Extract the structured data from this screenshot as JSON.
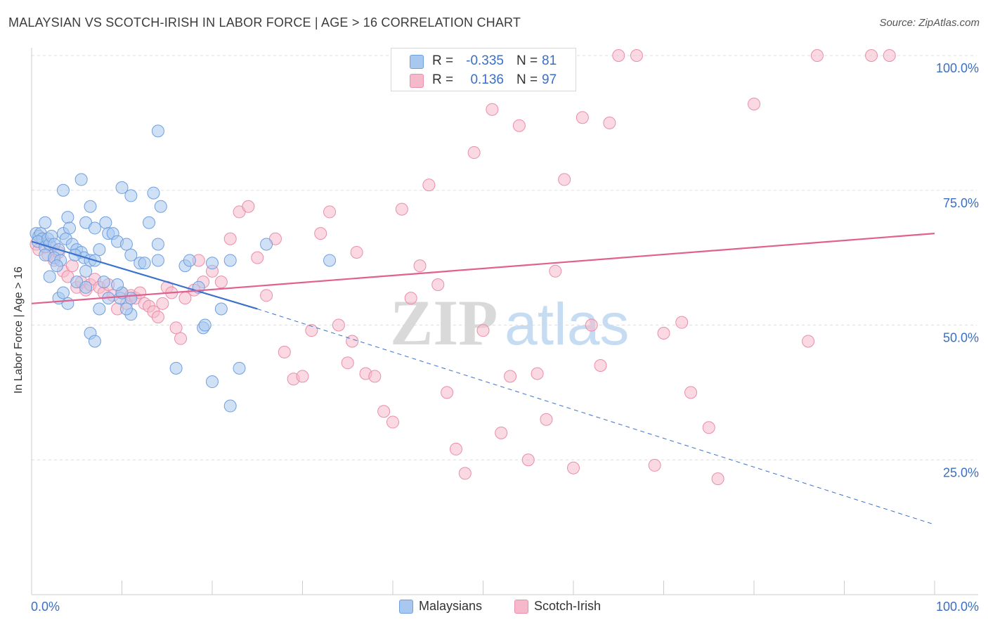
{
  "header": {
    "title": "MALAYSIAN VS SCOTCH-IRISH IN LABOR FORCE | AGE > 16 CORRELATION CHART",
    "source": "Source: ZipAtlas.com"
  },
  "watermark": "ZIPatlas",
  "legend_box": {
    "rows": [
      {
        "r_label": "R =",
        "r_value": "-0.335",
        "n_label": "N =",
        "n_value": "81"
      },
      {
        "r_label": "R =",
        "r_value": "0.136",
        "n_label": "N =",
        "n_value": "97"
      }
    ]
  },
  "colors": {
    "blue_fill": "#a9c8ef",
    "blue_stroke": "#6f9fe0",
    "blue_line": "#3a72cc",
    "pink_fill": "#f6b9cb",
    "pink_stroke": "#ea8eab",
    "pink_line": "#e0608e",
    "tick_label": "#3a6fc4",
    "grid": "#dddddd"
  },
  "chart_data": {
    "type": "scatter",
    "title": "MALAYSIAN VS SCOTCH-IRISH IN LABOR FORCE | AGE > 16 CORRELATION CHART",
    "xlabel": "",
    "ylabel": "In Labor Force | Age > 16",
    "xlim": [
      0,
      100
    ],
    "ylim": [
      0,
      105
    ],
    "x_tick_labels": [
      "0.0%",
      "100.0%"
    ],
    "y_ticks": [
      25,
      50,
      75,
      100
    ],
    "y_tick_labels": [
      "25.0%",
      "50.0%",
      "75.0%",
      "100.0%"
    ],
    "grid": "horizontal dashed",
    "legend_position": "bottom",
    "series": [
      {
        "name": "Malaysians",
        "color": "#a9c8ef",
        "trend": {
          "x": [
            0,
            25
          ],
          "y": [
            65.5,
            53
          ],
          "dashed_extension": {
            "x": [
              25,
              100
            ],
            "y": [
              53,
              13
            ]
          }
        },
        "points": [
          [
            0.5,
            67
          ],
          [
            0.8,
            66.5
          ],
          [
            1,
            67
          ],
          [
            1.2,
            66
          ],
          [
            0.7,
            65.5
          ],
          [
            1.5,
            64.5
          ],
          [
            1.8,
            66
          ],
          [
            2,
            65
          ],
          [
            1.5,
            69
          ],
          [
            2.2,
            66.5
          ],
          [
            2.5,
            65
          ],
          [
            3,
            64
          ],
          [
            3.5,
            67
          ],
          [
            3.8,
            66
          ],
          [
            4,
            70
          ],
          [
            4.2,
            68
          ],
          [
            4.5,
            65
          ],
          [
            5,
            64
          ],
          [
            5.5,
            63.5
          ],
          [
            5.8,
            62.5
          ],
          [
            6.5,
            72
          ],
          [
            6,
            69
          ],
          [
            7,
            68
          ],
          [
            7.5,
            64
          ],
          [
            5.5,
            77
          ],
          [
            3.5,
            75
          ],
          [
            8.2,
            69
          ],
          [
            8.5,
            67
          ],
          [
            9,
            67
          ],
          [
            9.5,
            65.5
          ],
          [
            10,
            75.5
          ],
          [
            10.5,
            65
          ],
          [
            11,
            74
          ],
          [
            11,
            63
          ],
          [
            9.8,
            55
          ],
          [
            12,
            61.5
          ],
          [
            13,
            69
          ],
          [
            13.5,
            74.5
          ],
          [
            14,
            65
          ],
          [
            14.3,
            72
          ],
          [
            14,
            62
          ],
          [
            12.5,
            61.5
          ],
          [
            11,
            52
          ],
          [
            11,
            55
          ],
          [
            17,
            61
          ],
          [
            17.5,
            62
          ],
          [
            18.5,
            57
          ],
          [
            19,
            49.5
          ],
          [
            19.2,
            50
          ],
          [
            20,
            61.5
          ],
          [
            21,
            53
          ],
          [
            22,
            62
          ],
          [
            23,
            42
          ],
          [
            26,
            65
          ],
          [
            33,
            62
          ],
          [
            14,
            86
          ],
          [
            6.5,
            48.5
          ],
          [
            7,
            47
          ],
          [
            4,
            54
          ],
          [
            3,
            55
          ],
          [
            3.5,
            56
          ],
          [
            2,
            59
          ],
          [
            1.5,
            63
          ],
          [
            2.5,
            62.5
          ],
          [
            5,
            58
          ],
          [
            6,
            60
          ],
          [
            6.5,
            62
          ],
          [
            7.5,
            53
          ],
          [
            8.5,
            55
          ],
          [
            10,
            56
          ],
          [
            10.5,
            53
          ],
          [
            6,
            57
          ],
          [
            8,
            58
          ],
          [
            9.5,
            57.5
          ],
          [
            7,
            62
          ],
          [
            4.8,
            63
          ],
          [
            3.2,
            62
          ],
          [
            2.8,
            61
          ],
          [
            20,
            39.5
          ],
          [
            22,
            35
          ],
          [
            16,
            42
          ]
        ]
      },
      {
        "name": "Scotch-Irish",
        "color": "#f6b9cb",
        "trend": {
          "x": [
            0,
            100
          ],
          "y": [
            54,
            67
          ]
        },
        "points": [
          [
            0.5,
            65
          ],
          [
            0.8,
            64
          ],
          [
            1.2,
            66
          ],
          [
            1.8,
            63
          ],
          [
            2.2,
            64.5
          ],
          [
            2.5,
            62
          ],
          [
            3,
            63.5
          ],
          [
            3.5,
            60
          ],
          [
            4,
            59
          ],
          [
            4.5,
            61
          ],
          [
            5,
            57
          ],
          [
            5.5,
            58
          ],
          [
            6,
            56.5
          ],
          [
            6.5,
            57.5
          ],
          [
            7,
            58.5
          ],
          [
            7.5,
            57
          ],
          [
            8,
            56
          ],
          [
            8.5,
            57.5
          ],
          [
            9,
            55.5
          ],
          [
            9.5,
            53
          ],
          [
            10,
            56
          ],
          [
            10.5,
            54
          ],
          [
            11,
            55.5
          ],
          [
            11.5,
            55
          ],
          [
            12,
            56
          ],
          [
            12.5,
            54
          ],
          [
            13,
            53.5
          ],
          [
            13.5,
            52.5
          ],
          [
            14,
            51.5
          ],
          [
            14.5,
            54
          ],
          [
            15,
            57
          ],
          [
            15.5,
            56
          ],
          [
            16,
            49.5
          ],
          [
            16.5,
            47.5
          ],
          [
            17,
            55
          ],
          [
            18,
            56.5
          ],
          [
            18.5,
            62
          ],
          [
            19,
            58
          ],
          [
            20,
            60
          ],
          [
            21,
            58
          ],
          [
            22,
            66
          ],
          [
            23,
            71
          ],
          [
            24,
            72
          ],
          [
            25,
            62.5
          ],
          [
            26,
            55.5
          ],
          [
            27,
            66
          ],
          [
            28,
            45
          ],
          [
            29,
            40
          ],
          [
            30,
            40.5
          ],
          [
            31,
            49
          ],
          [
            32,
            67
          ],
          [
            33,
            71
          ],
          [
            34,
            50
          ],
          [
            35,
            43
          ],
          [
            35.5,
            47
          ],
          [
            36,
            63.5
          ],
          [
            37,
            41
          ],
          [
            38,
            40.5
          ],
          [
            39,
            34
          ],
          [
            40,
            32
          ],
          [
            41,
            71.5
          ],
          [
            42,
            55
          ],
          [
            43,
            61
          ],
          [
            44,
            76
          ],
          [
            45,
            57.5
          ],
          [
            46,
            37.5
          ],
          [
            47,
            27
          ],
          [
            48,
            22.5
          ],
          [
            49,
            82
          ],
          [
            50,
            49
          ],
          [
            51,
            90
          ],
          [
            52,
            30
          ],
          [
            53,
            40.5
          ],
          [
            54,
            87
          ],
          [
            55,
            25
          ],
          [
            56,
            41
          ],
          [
            57,
            32.5
          ],
          [
            58,
            60
          ],
          [
            59,
            77
          ],
          [
            60,
            23.5
          ],
          [
            61,
            88.5
          ],
          [
            62,
            50
          ],
          [
            63,
            42.5
          ],
          [
            64,
            87.5
          ],
          [
            65,
            100
          ],
          [
            67,
            100
          ],
          [
            69,
            24
          ],
          [
            70,
            48.5
          ],
          [
            72,
            50.5
          ],
          [
            73,
            37.5
          ],
          [
            75,
            31
          ],
          [
            76,
            21.5
          ],
          [
            80,
            91
          ],
          [
            87,
            100
          ],
          [
            93,
            100
          ],
          [
            95,
            100
          ],
          [
            86,
            47
          ]
        ]
      }
    ]
  },
  "legend_bottom": {
    "items": [
      {
        "label": "Malaysians"
      },
      {
        "label": "Scotch-Irish"
      }
    ]
  }
}
